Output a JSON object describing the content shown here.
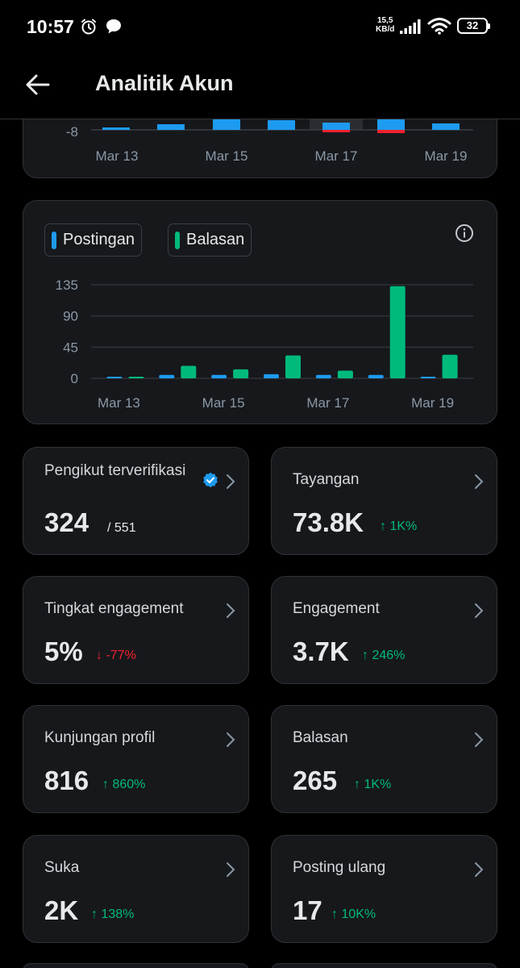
{
  "status_bar": {
    "time": "10:57",
    "speed_value": "15,5",
    "speed_unit": "KB/d",
    "battery": "32"
  },
  "header": {
    "title": "Analitik Akun",
    "back_icon": "arrow-left-icon"
  },
  "chart_top": {
    "type": "bar",
    "y_tick": "-8",
    "x_ticks": [
      "Mar 13",
      "Mar 15",
      "Mar 17",
      "Mar 19"
    ]
  },
  "chart_data": {
    "type": "bar",
    "title": "",
    "legend": [
      "Postingan",
      "Balasan"
    ],
    "legend_position": "top-left",
    "categories": [
      "Mar 13",
      "Mar 14",
      "Mar 15",
      "Mar 16",
      "Mar 17",
      "Mar 18",
      "Mar 19"
    ],
    "x_tick_labels": [
      "Mar 13",
      "Mar 15",
      "Mar 17",
      "Mar 19"
    ],
    "y_ticks": [
      "0",
      "45",
      "90",
      "135"
    ],
    "ylim": [
      0,
      135
    ],
    "grid": true,
    "series": [
      {
        "name": "Postingan",
        "color": "#1d9bf0",
        "values": [
          1,
          5,
          5,
          6,
          5,
          5,
          1
        ]
      },
      {
        "name": "Balasan",
        "color": "#00ba7c",
        "values": [
          1,
          18,
          13,
          33,
          11,
          133,
          34
        ]
      }
    ]
  },
  "stats": [
    {
      "label": "Pengikut terverifikasi",
      "value": "324",
      "total": "/ 551",
      "verified": true
    },
    {
      "label": "Tayangan",
      "value": "73.8K",
      "delta": "↑ 1K%",
      "direction": "up"
    },
    {
      "label": "Tingkat engagement",
      "value": "5%",
      "delta": "↓ -77%",
      "direction": "down"
    },
    {
      "label": "Engagement",
      "value": "3.7K",
      "delta": "↑ 246%",
      "direction": "up"
    },
    {
      "label": "Kunjungan profil",
      "value": "816",
      "delta": "↑ 860%",
      "direction": "up"
    },
    {
      "label": "Balasan",
      "value": "265",
      "delta": "↑ 1K%",
      "direction": "up"
    },
    {
      "label": "Suka",
      "value": "2K",
      "delta": "↑ 138%",
      "direction": "up"
    },
    {
      "label": "Posting ulang",
      "value": "17",
      "delta": "↑ 10K%",
      "direction": "up"
    }
  ],
  "colors": {
    "background": "#000000",
    "card": "#16181c",
    "border": "#2f3336",
    "blue": "#1d9bf0",
    "green": "#00ba7c",
    "red": "#f4212e"
  }
}
